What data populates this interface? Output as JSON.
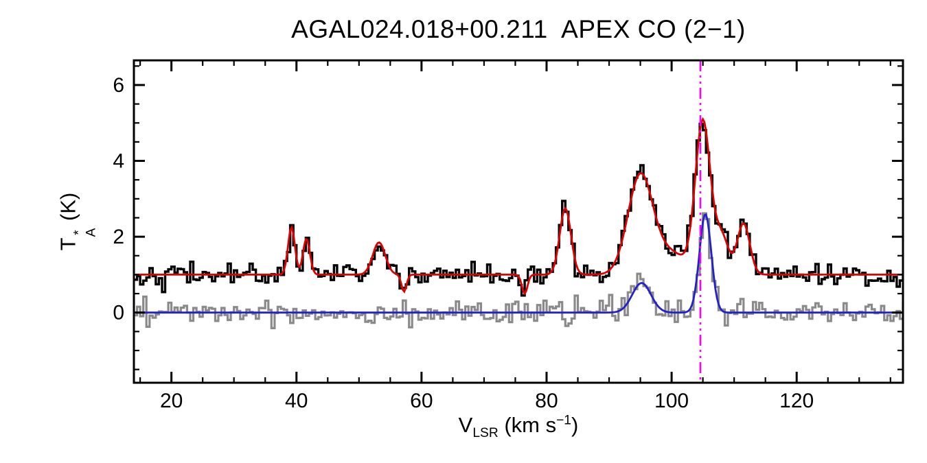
{
  "chart_data": {
    "type": "line",
    "title": "AGAL024.018+00.211  APEX CO (2−1)",
    "xlabel_parts": {
      "v": "V",
      "sub": "LSR",
      "mid": " (km s",
      "sup": "−1",
      "end": ")"
    },
    "ylabel_parts": {
      "t": "T",
      "sup": "*",
      "sub": "A",
      "unit": " (K)"
    },
    "xlim": [
      14,
      137
    ],
    "ylim": [
      -1.85,
      6.65
    ],
    "xticks": [
      20,
      40,
      60,
      80,
      100,
      120
    ],
    "yticks": [
      0,
      2,
      4,
      6
    ],
    "xminor_step": 5,
    "yminor_step": 0.5,
    "grid": false,
    "legend": "none",
    "channel_width": 0.5,
    "seed": 42,
    "colors": {
      "spectrum_main": "#000000",
      "fit_main": "#e00000",
      "spectrum_secondary": "#8a8a8a",
      "fit_secondary": "#2222cc",
      "velocity_marker": "#ff00ff",
      "axis": "#000000"
    },
    "spectrum_main": {
      "baseline_offset": 1.0,
      "noise_sigma": 0.14,
      "components": [
        {
          "center": 39.2,
          "amp": 1.25,
          "sigma": 0.55
        },
        {
          "center": 41.6,
          "amp": 0.95,
          "sigma": 0.55
        },
        {
          "center": 53.2,
          "amp": 0.85,
          "sigma": 1.0
        },
        {
          "center": 57.2,
          "amp": -0.45,
          "sigma": 0.4
        },
        {
          "center": 76.5,
          "amp": -0.5,
          "sigma": 0.45
        },
        {
          "center": 83.0,
          "amp": 1.75,
          "sigma": 0.9
        },
        {
          "center": 95.0,
          "amp": 2.6,
          "sigma": 2.0
        },
        {
          "center": 100.0,
          "amp": 0.55,
          "sigma": 2.5
        },
        {
          "center": 105.0,
          "amp": 4.0,
          "sigma": 1.2
        },
        {
          "center": 108.0,
          "amp": 1.0,
          "sigma": 1.1
        },
        {
          "center": 111.5,
          "amp": 1.35,
          "sigma": 1.0
        }
      ]
    },
    "spectrum_secondary": {
      "baseline_offset": 0.0,
      "noise_sigma": 0.16,
      "components": [
        {
          "center": 95.2,
          "amp": 0.78,
          "sigma": 1.5
        },
        {
          "center": 105.4,
          "amp": 2.6,
          "sigma": 0.95
        }
      ]
    },
    "vline_x": 104.6
  }
}
